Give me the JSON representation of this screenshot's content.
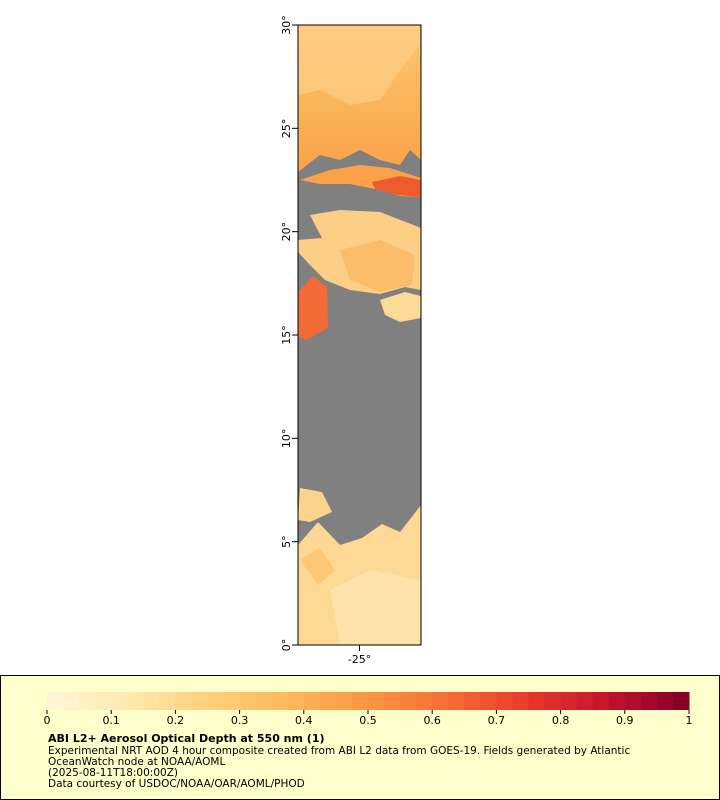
{
  "chart_data": {
    "type": "map",
    "title": "ABI L2+ Aerosol Optical Depth at 550 nm (1)",
    "description": [
      "Experimental NRT AOD 4 hour composite created from ABI L2 data from GOES-19. Fields generated by Atlantic",
      "OceanWatch node at NOAA/AOML"
    ],
    "time": "(2025-08-11T18:00:00Z)",
    "credit": "Data courtesy of USDOC/NOAA/OAR/AOML/PHOD",
    "xlim": [
      -28,
      -22
    ],
    "ylim": [
      0,
      30
    ],
    "xticks": [
      {
        "value": -25,
        "label": "-25°"
      }
    ],
    "yticks": [
      {
        "value": 0,
        "label": "0°"
      },
      {
        "value": 5,
        "label": "5°"
      },
      {
        "value": 10,
        "label": "10°"
      },
      {
        "value": 15,
        "label": "15°"
      },
      {
        "value": 20,
        "label": "20°"
      },
      {
        "value": 25,
        "label": "25°"
      },
      {
        "value": 30,
        "label": "30°"
      }
    ],
    "colorbar": {
      "range": [
        0,
        1
      ],
      "ticks": [
        0,
        0.1,
        0.2,
        0.3,
        0.4,
        0.5,
        0.6,
        0.7,
        0.8,
        0.9,
        1
      ],
      "colors": [
        "#fff6d8",
        "#fee9b0",
        "#fdd17c",
        "#fcb85a",
        "#fb9642",
        "#f86c34",
        "#e8382c",
        "#c4122c",
        "#7f0028"
      ]
    }
  }
}
